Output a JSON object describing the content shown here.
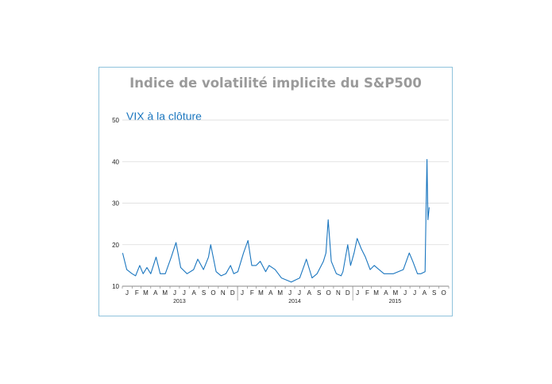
{
  "chart_data": {
    "type": "line",
    "title": "Indice de volatilité implicite du S&P500",
    "xlabel": "",
    "ylabel": "",
    "ylim": [
      10,
      50
    ],
    "yticks": [
      10,
      20,
      30,
      40,
      50
    ],
    "grid": "horizontal",
    "month_labels": [
      "J",
      "F",
      "M",
      "A",
      "M",
      "J",
      "J",
      "A",
      "S",
      "O",
      "N",
      "D",
      "J",
      "F",
      "M",
      "A",
      "M",
      "J",
      "J",
      "A",
      "S",
      "O",
      "N",
      "D",
      "J",
      "F",
      "M",
      "A",
      "M",
      "J",
      "J",
      "A",
      "S",
      "O"
    ],
    "year_labels": [
      "2013",
      "2014",
      "2015"
    ],
    "series": [
      {
        "name": "VIX à la clôture",
        "color": "#1a76bf",
        "x": [
          "2013-01-02",
          "2013-01-15",
          "2013-02-01",
          "2013-02-12",
          "2013-02-25",
          "2013-03-08",
          "2013-03-20",
          "2013-04-01",
          "2013-04-18",
          "2013-05-01",
          "2013-05-17",
          "2013-06-05",
          "2013-06-20",
          "2013-07-05",
          "2013-07-25",
          "2013-08-15",
          "2013-08-28",
          "2013-09-15",
          "2013-10-01",
          "2013-10-08",
          "2013-10-25",
          "2013-11-10",
          "2013-11-25",
          "2013-12-10",
          "2013-12-20",
          "2014-01-02",
          "2014-01-20",
          "2014-02-03",
          "2014-02-15",
          "2014-03-01",
          "2014-03-14",
          "2014-03-31",
          "2014-04-11",
          "2014-04-30",
          "2014-05-20",
          "2014-06-05",
          "2014-06-20",
          "2014-07-03",
          "2014-07-17",
          "2014-07-31",
          "2014-08-07",
          "2014-08-25",
          "2014-09-10",
          "2014-09-30",
          "2014-10-08",
          "2014-10-15",
          "2014-10-25",
          "2014-11-10",
          "2014-11-25",
          "2014-12-01",
          "2014-12-16",
          "2014-12-25",
          "2015-01-05",
          "2015-01-15",
          "2015-01-28",
          "2015-02-10",
          "2015-02-25",
          "2015-03-10",
          "2015-03-25",
          "2015-04-10",
          "2015-04-25",
          "2015-05-10",
          "2015-05-25",
          "2015-06-10",
          "2015-06-29",
          "2015-07-10",
          "2015-07-25",
          "2015-08-05",
          "2015-08-18",
          "2015-08-21",
          "2015-08-24",
          "2015-08-27",
          "2015-08-31"
        ],
        "values": [
          18.0,
          14.0,
          13.0,
          12.5,
          15.0,
          13.0,
          14.5,
          13.0,
          17.0,
          13.0,
          13.0,
          17.0,
          20.5,
          14.5,
          13.0,
          14.0,
          16.5,
          14.0,
          17.0,
          20.0,
          13.5,
          12.5,
          13.0,
          15.0,
          13.0,
          13.5,
          18.0,
          21.0,
          15.0,
          15.0,
          16.0,
          13.5,
          15.0,
          14.0,
          12.0,
          11.5,
          11.0,
          11.5,
          12.0,
          15.0,
          16.5,
          12.0,
          13.0,
          16.0,
          18.0,
          26.0,
          16.0,
          13.0,
          12.5,
          13.5,
          20.0,
          15.0,
          18.0,
          21.5,
          19.0,
          17.0,
          14.0,
          15.0,
          14.0,
          13.0,
          13.0,
          13.0,
          13.5,
          14.0,
          18.0,
          16.0,
          13.0,
          13.0,
          13.5,
          28.0,
          40.5,
          26.0,
          29.0
        ]
      }
    ]
  }
}
